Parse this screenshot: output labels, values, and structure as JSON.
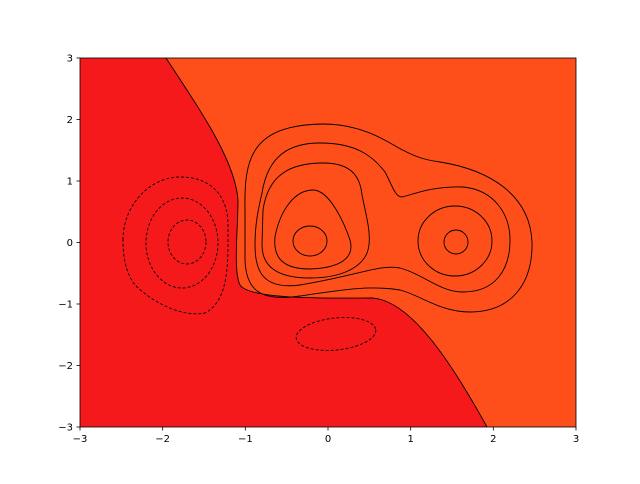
{
  "chart_data": {
    "type": "contour",
    "title": "",
    "xlabel": "",
    "ylabel": "",
    "xlim": [
      -3,
      3
    ],
    "ylim": [
      -3,
      3
    ],
    "xticks": [
      "−3",
      "−2",
      "−1",
      "0",
      "1",
      "2",
      "3"
    ],
    "yticks": [
      "3",
      "2",
      "1",
      "0",
      "−1",
      "−2",
      "−3"
    ],
    "xtick_values": [
      -3,
      -2,
      -1,
      0,
      1,
      2,
      3
    ],
    "ytick_values": [
      3,
      2,
      1,
      0,
      -1,
      -2,
      -3
    ],
    "colormap": "hot",
    "grid": false,
    "level_colors": [
      "#3f1a1c",
      "#7a1a1c",
      "#b5191c",
      "#f5191c",
      "#fe4f1a",
      "#ff8518",
      "#ffc01a",
      "#ffff1a",
      "#ffff70",
      "#ffffd0"
    ],
    "negative_levels_linestyle": "dashed",
    "positive_levels_linestyle": "solid"
  }
}
